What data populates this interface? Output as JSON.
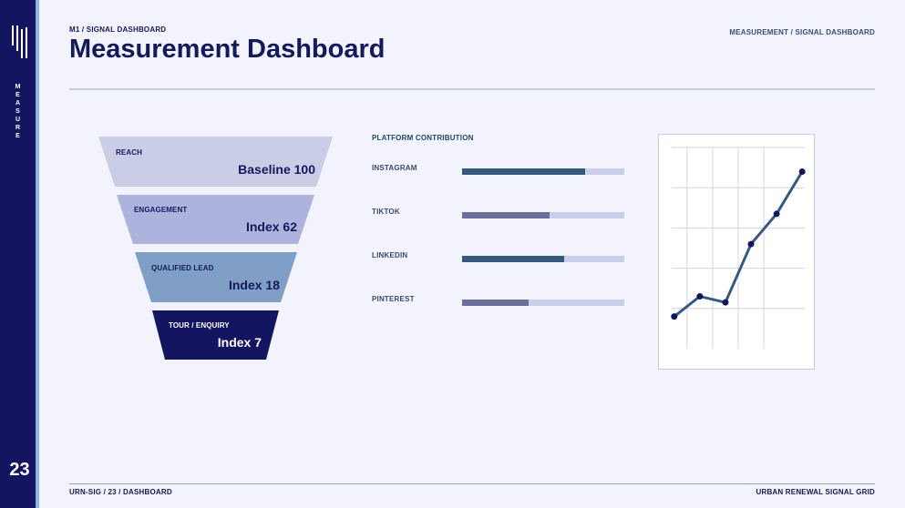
{
  "sidebar": {
    "vertical_word": [
      "M",
      "E",
      "A",
      "S",
      "U",
      "R",
      "E"
    ],
    "page_number": "23"
  },
  "header": {
    "kicker": "M1 / SIGNAL DASHBOARD",
    "title": "Measurement Dashboard",
    "top_right": "MEASUREMENT / SIGNAL DASHBOARD"
  },
  "funnel": [
    {
      "label": "REACH",
      "value": "Baseline 100",
      "color": "#c9cde6",
      "text_color": "#131a5c"
    },
    {
      "label": "ENGAGEMENT",
      "value": "Index 62",
      "color": "#aeb3de",
      "text_color": "#131a5c"
    },
    {
      "label": "QUALIFIED LEAD",
      "value": "Index 18",
      "color": "#7f9fc6",
      "text_color": "#131a5c"
    },
    {
      "label": "TOUR / ENQUIRY",
      "value": "Index 7",
      "color": "#141560",
      "text_color": "#ffffff"
    }
  ],
  "platform_contribution": {
    "heading": "PLATFORM CONTRIBUTION",
    "rows": [
      {
        "label": "INSTAGRAM",
        "fraction": 0.76,
        "color": "#345a80"
      },
      {
        "label": "TIKTOK",
        "fraction": 0.54,
        "color": "#6a6f9e"
      },
      {
        "label": "LINKEDIN",
        "fraction": 0.63,
        "color": "#345a80"
      },
      {
        "label": "PINTEREST",
        "fraction": 0.41,
        "color": "#6a6f9e"
      }
    ]
  },
  "chart_data": {
    "type": "line",
    "x": [
      1,
      2,
      3,
      4,
      5,
      6
    ],
    "series": [
      {
        "values": [
          0.8,
          1.3,
          1.15,
          2.6,
          3.35,
          4.4
        ]
      }
    ],
    "ylim": [
      0,
      5
    ],
    "grid": true,
    "line_color": "#345a80",
    "marker_color": "#141560"
  },
  "footer": {
    "left": "URN-SIG / 23 / DASHBOARD",
    "right": "URBAN RENEWAL SIGNAL GRID"
  }
}
